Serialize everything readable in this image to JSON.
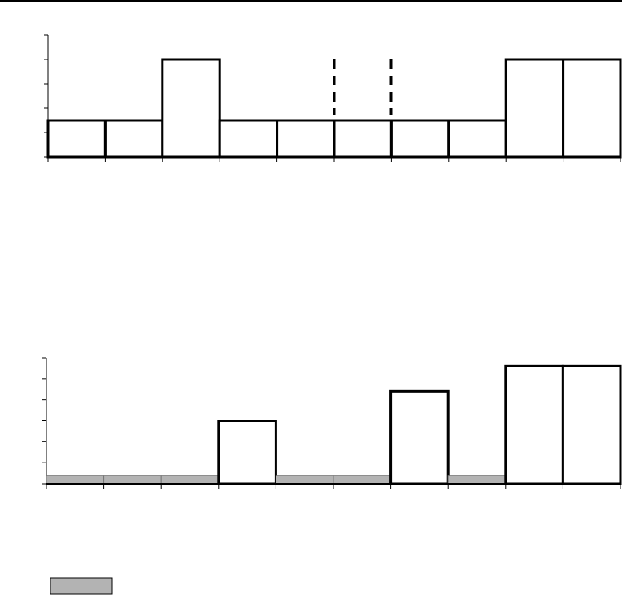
{
  "chart_data": [
    {
      "type": "bar",
      "categories": [
        null,
        null,
        null,
        null,
        null,
        null,
        null,
        null,
        null,
        null
      ],
      "values": [
        1.5,
        1.5,
        4,
        1.5,
        1.5,
        1.5,
        1.5,
        1.5,
        4,
        4
      ],
      "color": "#ffffff",
      "ylim": [
        0,
        5
      ],
      "yticks": [
        0,
        1,
        2,
        3,
        4,
        5
      ]
    },
    {
      "type": "bar",
      "categories": [
        null,
        null,
        null,
        null,
        null,
        null,
        null,
        null,
        null,
        null
      ],
      "values": [
        0.4,
        0.4,
        0.4,
        3,
        0.4,
        0.4,
        4.4,
        0.4,
        5.6,
        5.6
      ],
      "colors": [
        "#b3b3b3",
        "#b3b3b3",
        "#b3b3b3",
        "#ffffff",
        "#b3b3b3",
        "#b3b3b3",
        "#ffffff",
        "#b3b3b3",
        "#ffffff",
        "#ffffff"
      ],
      "ylim": [
        0,
        6
      ],
      "yticks": [
        0,
        1,
        2,
        3,
        4,
        5,
        6
      ]
    }
  ]
}
